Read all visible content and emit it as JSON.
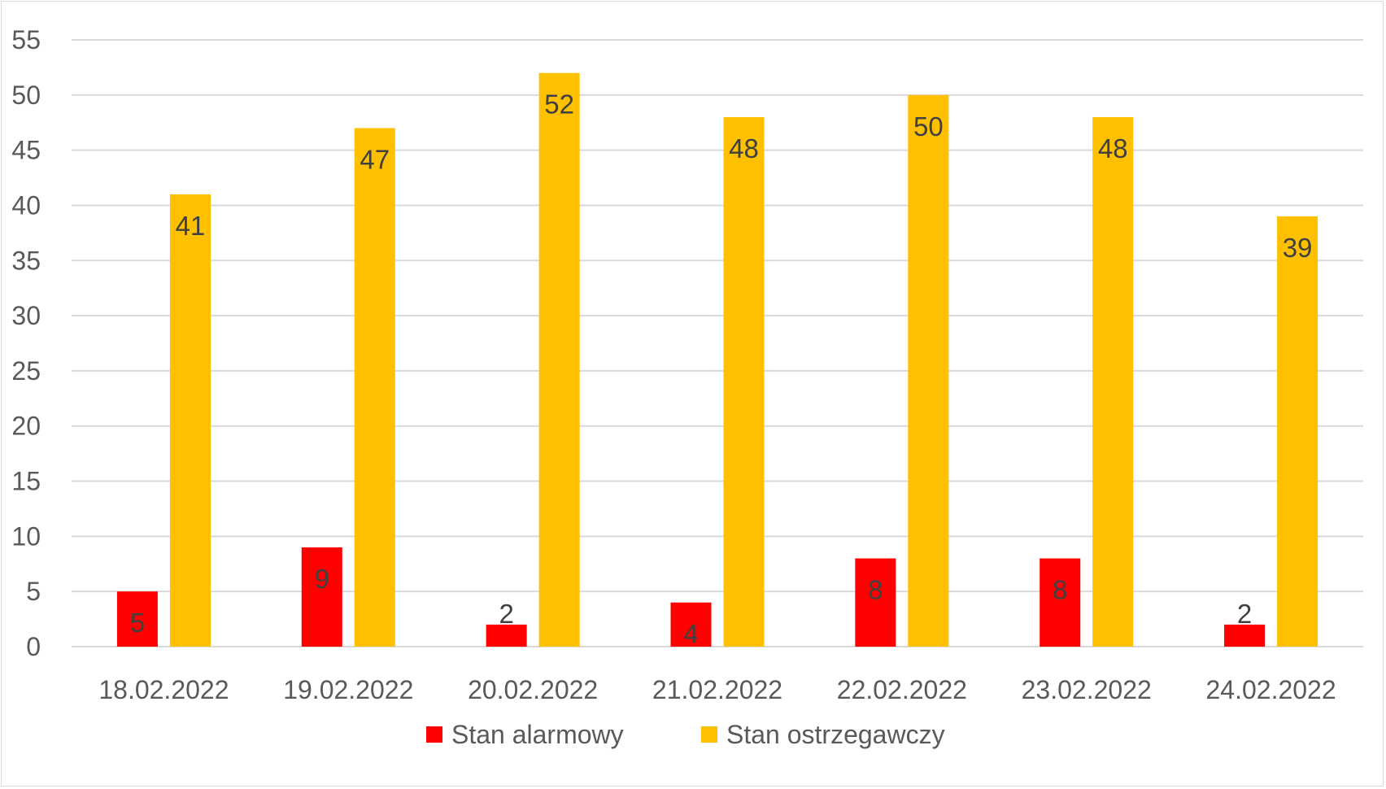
{
  "chart_data": {
    "type": "bar",
    "title": "",
    "xlabel": "",
    "ylabel": "",
    "categories": [
      "18.02.2022",
      "19.02.2022",
      "20.02.2022",
      "21.02.2022",
      "22.02.2022",
      "23.02.2022",
      "24.02.2022"
    ],
    "series": [
      {
        "name": "Stan alarmowy",
        "color": "#ff0000",
        "values": [
          5,
          9,
          2,
          4,
          8,
          8,
          2
        ]
      },
      {
        "name": "Stan ostrzegawczy",
        "color": "#ffc000",
        "values": [
          41,
          47,
          52,
          48,
          50,
          48,
          39
        ]
      }
    ],
    "ylim": [
      0,
      55
    ],
    "yticks": [
      0,
      5,
      10,
      15,
      20,
      25,
      30,
      35,
      40,
      45,
      50,
      55
    ],
    "grid": true,
    "gridColor": "#d9d9d9",
    "legend_position": "bottom",
    "data_labels": true
  }
}
